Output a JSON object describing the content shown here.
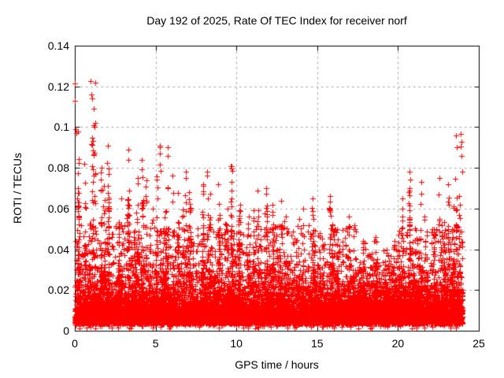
{
  "page": {
    "background": "#ffffff",
    "text_color": "#000000"
  },
  "chart_data": {
    "type": "scatter",
    "title": "Day 192 of 2025, Rate Of TEC Index for receiver norf",
    "xlabel": "GPS time / hours",
    "ylabel": "ROTI / TECUs",
    "xlim": [
      0,
      25
    ],
    "ylim": [
      0,
      0.14
    ],
    "xticks": [
      0,
      5,
      10,
      15,
      20,
      25
    ],
    "xtick_labels": [
      "0",
      "5",
      "10",
      "15",
      "20",
      "25"
    ],
    "yticks": [
      0,
      0.02,
      0.04,
      0.06,
      0.08,
      0.1,
      0.12,
      0.14
    ],
    "ytick_labels": [
      "0",
      "0.02",
      "0.04",
      "0.06",
      "0.08",
      "0.1",
      "0.12",
      "0.14"
    ],
    "grid": true,
    "grid_style": "dashed",
    "legend": "none",
    "tick_mirroring": true,
    "marker": {
      "shape": "plus",
      "size": 7,
      "color": "#ff0000"
    },
    "colors": {
      "points": "#ff0000",
      "grid": "#a0a0a0",
      "axis": "#000000",
      "background": "#ffffff",
      "text": "#000000"
    },
    "x_data_range_hours": [
      0,
      24.05
    ],
    "baseline_band": {
      "description": "dense ROTI noise floor present across all 24 hours",
      "y_min": 0.003,
      "y_dense_max": 0.03
    },
    "envelope_bins_hours": 0.5,
    "envelope_max": [
      0.098,
      0.082,
      0.122,
      0.08,
      0.091,
      0.065,
      0.089,
      0.075,
      0.084,
      0.06,
      0.091,
      0.09,
      0.076,
      0.078,
      0.068,
      0.072,
      0.078,
      0.072,
      0.06,
      0.081,
      0.062,
      0.056,
      0.069,
      0.07,
      0.062,
      0.064,
      0.056,
      0.055,
      0.06,
      0.065,
      0.048,
      0.066,
      0.05,
      0.056,
      0.052,
      0.044,
      0.038,
      0.046,
      0.04,
      0.044,
      0.065,
      0.078,
      0.073,
      0.056,
      0.05,
      0.075,
      0.072,
      0.096
    ],
    "outliers": [
      [
        0.02,
        0.1215
      ],
      [
        0.02,
        0.113
      ],
      [
        0.05,
        0.099
      ],
      [
        0.08,
        0.097
      ],
      [
        0.98,
        0.1225
      ],
      [
        1.02,
        0.116
      ],
      [
        1.05,
        0.114
      ],
      [
        1.15,
        0.101
      ],
      [
        1.2,
        0.1
      ],
      [
        23.9,
        0.0965
      ],
      [
        23.95,
        0.093
      ],
      [
        23.88,
        0.0905
      ],
      [
        23.92,
        0.086
      ],
      [
        24.0,
        0.078
      ]
    ],
    "synthesis": {
      "seed": 192,
      "dense_per_bin": 230,
      "mid_per_bin": 48,
      "low_fringe_per_bin": 3
    }
  }
}
